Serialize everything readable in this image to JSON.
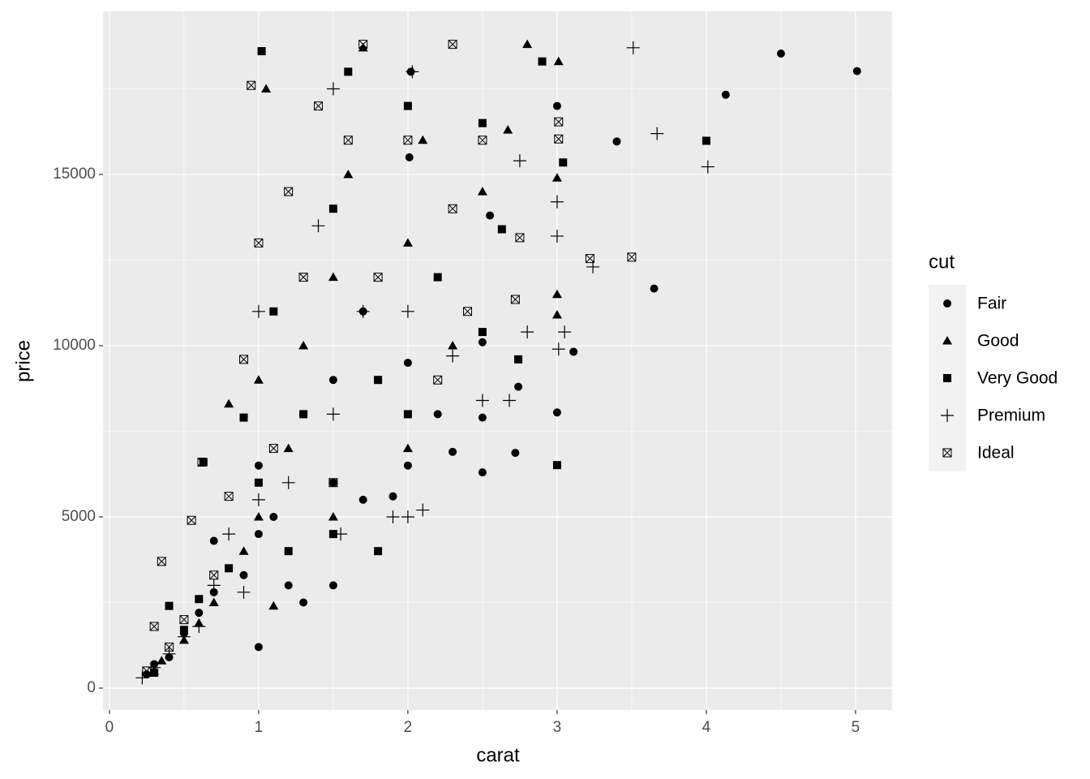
{
  "chart_data": {
    "type": "scatter",
    "x_label": "carat",
    "y_label": "price",
    "legend_title": "cut",
    "xlim": [
      -0.043,
      5.245
    ],
    "ylim": [
      -640,
      19763
    ],
    "xticks": [
      0,
      1,
      2,
      3,
      4,
      5
    ],
    "yticks": [
      0,
      5000,
      10000,
      15000
    ],
    "x_minor_grid": [
      0.5,
      1.5,
      2.5,
      3.5,
      4.5
    ],
    "y_minor_grid": [
      2500,
      7500,
      12500,
      17500
    ],
    "grid": true,
    "legend_position": "right",
    "series": [
      {
        "name": "Fair",
        "shape": "circle",
        "color": "#000000",
        "x": [
          0.25,
          0.3,
          0.4,
          0.5,
          0.6,
          0.7,
          0.7,
          0.9,
          1.0,
          1.0,
          1.0,
          1.1,
          1.2,
          1.3,
          1.5,
          1.5,
          1.5,
          1.7,
          1.7,
          2.0,
          2.0,
          2.01,
          2.02,
          2.2,
          2.3,
          2.5,
          2.5,
          2.72,
          2.74,
          3.0,
          3.0,
          3.11,
          3.4,
          3.65,
          4.13,
          4.5,
          5.01,
          2.5,
          2.55,
          1.9
        ],
        "values": [
          400,
          700,
          900,
          1600,
          2200,
          2800,
          4300,
          3300,
          1200,
          4500,
          6500,
          5000,
          3000,
          2500,
          3000,
          6000,
          9000,
          5500,
          11000,
          6500,
          9500,
          15500,
          18000,
          8000,
          6900,
          6300,
          7900,
          6870,
          8800,
          8050,
          17000,
          9823,
          15964,
          11668,
          17329,
          18531,
          18018,
          10100,
          13800,
          5600
        ]
      },
      {
        "name": "Good",
        "shape": "triangle",
        "color": "#000000",
        "x": [
          0.3,
          0.35,
          0.5,
          0.7,
          0.8,
          0.9,
          1.0,
          1.0,
          1.05,
          1.1,
          1.2,
          1.3,
          1.5,
          1.5,
          1.7,
          2.0,
          2.0,
          2.1,
          2.3,
          2.5,
          2.67,
          2.8,
          3.0,
          3.0,
          3.0,
          3.01,
          1.6,
          0.6
        ],
        "values": [
          500,
          800,
          1400,
          2500,
          8300,
          4000,
          5000,
          9000,
          17500,
          2400,
          7000,
          10000,
          5000,
          12000,
          18700,
          7000,
          13000,
          16000,
          10000,
          14500,
          16300,
          18800,
          14900,
          11500,
          10900,
          18300,
          15000,
          1900
        ]
      },
      {
        "name": "Very Good",
        "shape": "square",
        "color": "#000000",
        "x": [
          0.3,
          0.4,
          0.5,
          0.6,
          0.63,
          0.8,
          0.9,
          1.0,
          1.02,
          1.1,
          1.2,
          1.3,
          1.5,
          1.5,
          1.6,
          1.8,
          2.0,
          2.0,
          2.2,
          2.5,
          2.5,
          2.74,
          2.63,
          3.0,
          3.04,
          4.0,
          2.9,
          1.8
        ],
        "values": [
          450,
          2400,
          1700,
          2600,
          6600,
          3500,
          7900,
          6000,
          18600,
          11000,
          4000,
          8000,
          4500,
          14000,
          18000,
          9000,
          8000,
          17000,
          12000,
          10400,
          16500,
          9600,
          13400,
          6512,
          15350,
          15984,
          18300,
          4000
        ]
      },
      {
        "name": "Premium",
        "shape": "plus",
        "color": "#000000",
        "x": [
          0.22,
          0.3,
          0.4,
          0.5,
          0.6,
          0.7,
          0.8,
          0.9,
          1.0,
          1.0,
          1.2,
          1.4,
          1.5,
          1.55,
          1.7,
          1.9,
          2.0,
          2.1,
          2.0,
          2.03,
          2.3,
          2.5,
          2.68,
          2.75,
          3.0,
          3.0,
          3.01,
          3.05,
          3.24,
          3.51,
          3.67,
          4.01,
          2.8,
          1.5
        ],
        "values": [
          300,
          600,
          1000,
          1500,
          1800,
          3000,
          4500,
          2800,
          5500,
          11000,
          6000,
          13500,
          8000,
          4500,
          11000,
          5000,
          5000,
          5200,
          11000,
          18000,
          9700,
          8400,
          8400,
          15400,
          13200,
          14200,
          9900,
          10400,
          12300,
          18701,
          16193,
          15223,
          10400,
          17500
        ]
      },
      {
        "name": "Ideal",
        "shape": "square-cross",
        "color": "#000000",
        "x": [
          0.25,
          0.3,
          0.4,
          0.5,
          0.55,
          0.62,
          0.7,
          0.8,
          0.9,
          0.95,
          1.0,
          1.1,
          1.2,
          1.3,
          1.4,
          1.5,
          1.6,
          1.7,
          1.8,
          2.0,
          2.2,
          2.3,
          2.4,
          2.5,
          2.72,
          2.75,
          3.01,
          3.01,
          3.22,
          3.5,
          0.35,
          2.3
        ],
        "values": [
          500,
          1800,
          1200,
          2000,
          4900,
          6600,
          3300,
          5600,
          9600,
          17600,
          13000,
          7000,
          14500,
          12000,
          17000,
          6000,
          16000,
          18800,
          12000,
          16000,
          9000,
          14000,
          11000,
          16000,
          11350,
          13156,
          16538,
          16037,
          12545,
          12587,
          3700,
          18800
        ]
      }
    ]
  }
}
